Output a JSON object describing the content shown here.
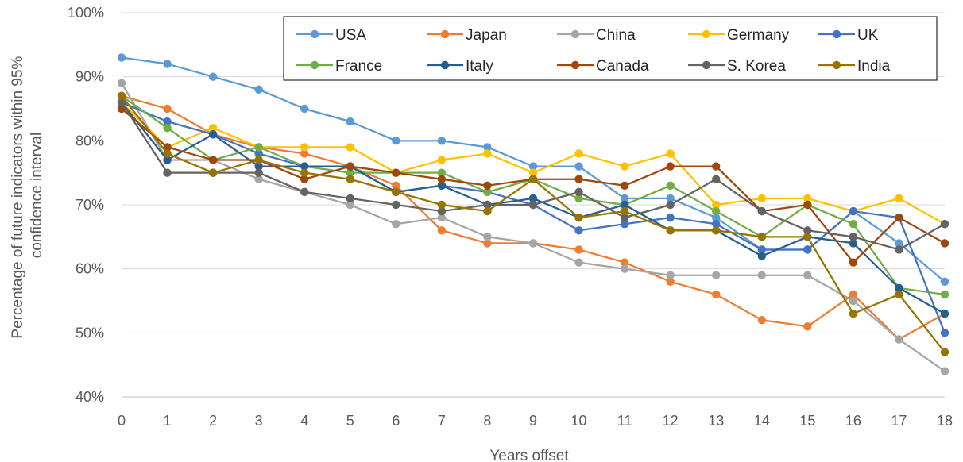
{
  "chart_data": {
    "type": "line",
    "title": "",
    "xlabel": "Years offset",
    "ylabel": "Percentage of future indicators within 95% confidence interval",
    "ylabel_lines": [
      "Percentage of future indicators within 95%",
      "confidence interval"
    ],
    "x": [
      0,
      1,
      2,
      3,
      4,
      5,
      6,
      7,
      8,
      9,
      10,
      11,
      12,
      13,
      14,
      15,
      16,
      17,
      18
    ],
    "x_tick_labels": [
      "0",
      "1",
      "2",
      "3",
      "4",
      "5",
      "6",
      "7",
      "8",
      "9",
      "10",
      "11",
      "12",
      "13",
      "14",
      "15",
      "16",
      "17",
      "18"
    ],
    "xlim": [
      0,
      18
    ],
    "ylim": [
      40,
      100
    ],
    "y_ticks": [
      40,
      50,
      60,
      70,
      80,
      90,
      100
    ],
    "y_tick_labels": [
      "40%",
      "50%",
      "60%",
      "70%",
      "80%",
      "90%",
      "100%"
    ],
    "grid": "horizontal",
    "legend_position": "top-right",
    "series": [
      {
        "name": "USA",
        "color": "#5B9BD5",
        "values": [
          93,
          92,
          90,
          88,
          85,
          83,
          80,
          80,
          79,
          76,
          76,
          71,
          71,
          68,
          63,
          63,
          69,
          64,
          58
        ]
      },
      {
        "name": "Japan",
        "color": "#ED7D31",
        "values": [
          87,
          85,
          81,
          79,
          78,
          76,
          73,
          66,
          64,
          64,
          63,
          61,
          58,
          56,
          52,
          51,
          56,
          49,
          53
        ]
      },
      {
        "name": "China",
        "color": "#A5A5A5",
        "values": [
          89,
          77,
          77,
          74,
          72,
          70,
          67,
          68,
          65,
          64,
          61,
          60,
          59,
          59,
          59,
          59,
          55,
          49,
          44
        ]
      },
      {
        "name": "Germany",
        "color": "#FFC000",
        "values": [
          86,
          79,
          82,
          79,
          79,
          79,
          75,
          77,
          78,
          75,
          78,
          76,
          78,
          70,
          71,
          71,
          69,
          71,
          67
        ]
      },
      {
        "name": "UK",
        "color": "#4472C4",
        "values": [
          86,
          83,
          81,
          78,
          76,
          76,
          72,
          73,
          72,
          70,
          66,
          67,
          68,
          67,
          63,
          63,
          69,
          68,
          50
        ]
      },
      {
        "name": "France",
        "color": "#70AD47",
        "values": [
          87,
          82,
          77,
          79,
          76,
          75,
          75,
          75,
          72,
          74,
          71,
          70,
          73,
          69,
          65,
          70,
          67,
          57,
          56
        ]
      },
      {
        "name": "Italy",
        "color": "#255E91",
        "values": [
          86,
          77,
          81,
          76,
          76,
          76,
          72,
          73,
          70,
          71,
          68,
          70,
          66,
          66,
          62,
          65,
          64,
          57,
          53
        ]
      },
      {
        "name": "Canada",
        "color": "#9E480E",
        "values": [
          85,
          79,
          77,
          77,
          74,
          76,
          75,
          74,
          73,
          74,
          74,
          73,
          76,
          76,
          69,
          70,
          61,
          68,
          64
        ]
      },
      {
        "name": "S. Korea",
        "color": "#636363",
        "values": [
          86,
          75,
          75,
          75,
          72,
          71,
          70,
          69,
          70,
          70,
          72,
          68,
          70,
          74,
          69,
          66,
          65,
          63,
          67
        ]
      },
      {
        "name": "India",
        "color": "#997300",
        "values": [
          87,
          78,
          75,
          77,
          75,
          74,
          72,
          70,
          69,
          74,
          68,
          69,
          66,
          66,
          65,
          65,
          53,
          56,
          47
        ]
      }
    ]
  }
}
